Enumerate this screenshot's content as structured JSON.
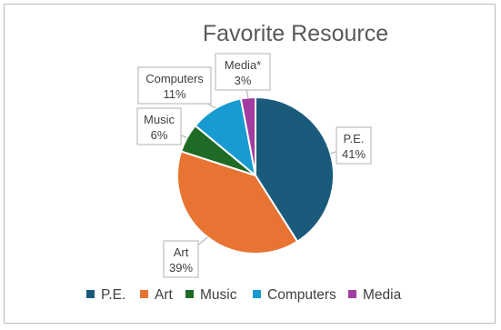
{
  "chart_data": {
    "type": "pie",
    "title": "Favorite Resource",
    "categories": [
      "P.E.",
      "Art",
      "Music",
      "Computers",
      "Media"
    ],
    "values": [
      41,
      39,
      6,
      11,
      3
    ],
    "data_labels": [
      {
        "name": "P.E.",
        "value": "41%"
      },
      {
        "name": "Art",
        "value": "39%"
      },
      {
        "name": "Music",
        "value": "6%"
      },
      {
        "name": "Computers",
        "value": "11%"
      },
      {
        "name": "Media*",
        "value": "3%"
      }
    ],
    "legend": [
      "P.E.",
      "Art",
      "Music",
      "Computers",
      "Media"
    ],
    "legend_position": "bottom",
    "colors": [
      "#1a5b7c",
      "#e87434",
      "#1f6a25",
      "#189bd0",
      "#a23ca0"
    ]
  }
}
